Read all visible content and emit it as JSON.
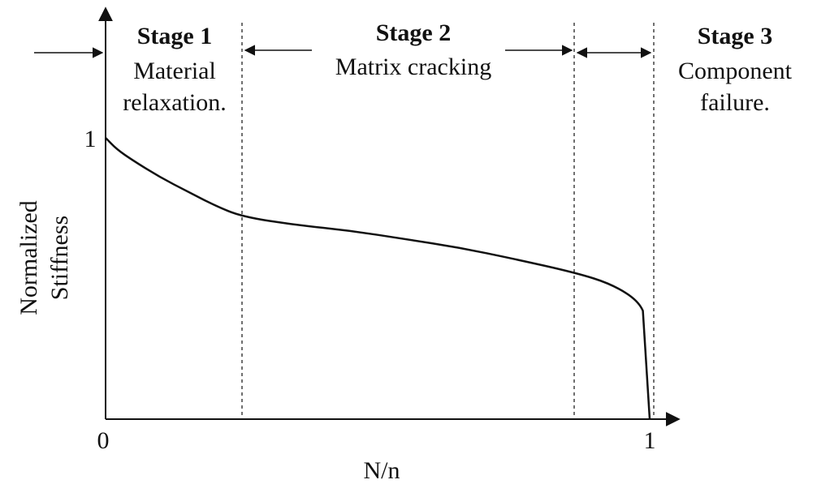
{
  "chart_data": {
    "type": "line",
    "xlabel": "N/n",
    "ylabel_line1": "Normalized",
    "ylabel_line2": "Stiffness",
    "x_tick_labels": [
      "0",
      "1"
    ],
    "y_tick_labels": [
      "1"
    ],
    "xlim": [
      0,
      1
    ],
    "ylim": [
      0,
      1
    ],
    "stage_boundaries": [
      0.25,
      0.865,
      1.0
    ],
    "series": [
      {
        "x": [
          0,
          0.02,
          0.05,
          0.1,
          0.15,
          0.2,
          0.25,
          0.35,
          0.45,
          0.55,
          0.65,
          0.75,
          0.865,
          0.93,
          0.98,
          0.995,
          1.0
        ],
        "y": [
          1.0,
          0.96,
          0.92,
          0.86,
          0.81,
          0.76,
          0.72,
          0.69,
          0.67,
          0.64,
          0.61,
          0.57,
          0.52,
          0.48,
          0.42,
          0.35,
          0.0
        ]
      }
    ]
  },
  "stages": [
    {
      "title": "Stage 1",
      "line1": "Material",
      "line2": "relaxation."
    },
    {
      "title": "Stage 2",
      "line1": "Matrix cracking",
      "line2": ""
    },
    {
      "title": "Stage 3",
      "line1": "Component",
      "line2": "failure."
    }
  ]
}
